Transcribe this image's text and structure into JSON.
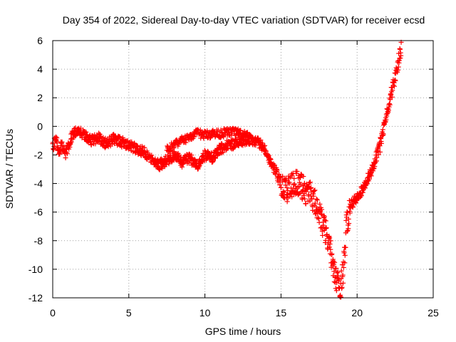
{
  "chart_data": {
    "type": "scatter",
    "title": "Day 354 of 2022, Sidereal Day-to-day VTEC variation (SDTVAR) for receiver ecsd",
    "xlabel": "GPS time / hours",
    "ylabel": "SDTVAR / TECUs",
    "xlim": [
      0,
      25
    ],
    "ylim": [
      -12,
      6
    ],
    "xticks": [
      0,
      5,
      10,
      15,
      20,
      25
    ],
    "yticks": [
      -12,
      -10,
      -8,
      -6,
      -4,
      -2,
      0,
      2,
      4,
      6
    ],
    "grid": true,
    "marker": "+",
    "color": "#ff0000",
    "series": [
      {
        "name": "SDTVAR",
        "trace_x": [
          0.0,
          0.2,
          0.4,
          0.6,
          0.8,
          1.0,
          1.3,
          1.6,
          2.0,
          2.5,
          3.0,
          3.5,
          4.0,
          4.5,
          5.0,
          5.5,
          6.0,
          6.5,
          7.0,
          7.5,
          8.0,
          8.5,
          9.0,
          9.5,
          10.0,
          10.5,
          11.0,
          11.5,
          12.0,
          12.5,
          13.0,
          13.5,
          14.0,
          14.3,
          14.6,
          15.0,
          15.3,
          15.6,
          16.0,
          16.3,
          16.6,
          17.0,
          17.3,
          17.6,
          18.0,
          18.3,
          18.6,
          18.9,
          19.1,
          19.3,
          19.6,
          20.0,
          20.3,
          20.6,
          21.0,
          21.3,
          21.6,
          21.9,
          22.2,
          22.5,
          22.8,
          22.9
        ],
        "trace_y": [
          -1.5,
          -0.8,
          -1.8,
          -1.2,
          -2.0,
          -1.5,
          -0.6,
          -0.3,
          -0.5,
          -1.0,
          -0.8,
          -1.2,
          -0.9,
          -1.1,
          -1.3,
          -1.6,
          -1.8,
          -2.2,
          -2.7,
          -2.4,
          -2.0,
          -2.5,
          -2.2,
          -2.8,
          -2.0,
          -2.2,
          -1.6,
          -1.3,
          -1.2,
          -1.0,
          -0.9,
          -1.1,
          -1.6,
          -2.5,
          -3.0,
          -4.0,
          -4.5,
          -4.2,
          -3.8,
          -4.2,
          -4.5,
          -4.8,
          -5.5,
          -6.5,
          -7.5,
          -9.0,
          -10.5,
          -11.5,
          -10.0,
          -7.0,
          -5.5,
          -5.0,
          -4.5,
          -3.8,
          -3.0,
          -2.0,
          -1.0,
          0.5,
          2.0,
          3.5,
          5.0,
          5.5
        ],
        "upper_x": [
          7.5,
          8.0,
          8.5,
          9.0,
          9.5,
          10.0,
          10.5,
          11.0,
          11.5,
          12.0,
          12.5,
          13.0
        ],
        "upper_y": [
          -1.6,
          -1.2,
          -1.0,
          -0.7,
          -0.5,
          -0.6,
          -0.5,
          -0.5,
          -0.4,
          -0.4,
          -0.6,
          -0.8
        ]
      }
    ]
  }
}
